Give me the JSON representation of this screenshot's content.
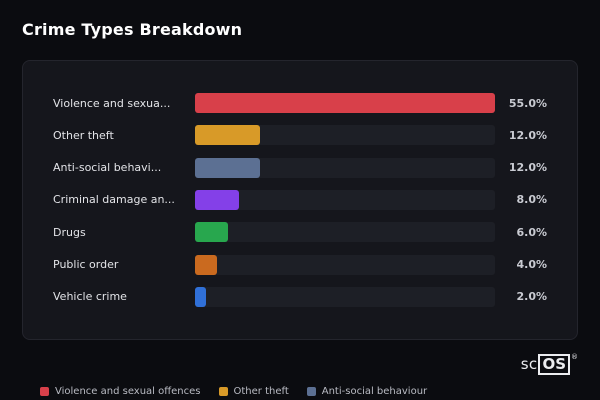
{
  "page": {
    "title": "Crime Types Breakdown"
  },
  "logo": {
    "prefix": "sc",
    "box": "OS",
    "registered": "®"
  },
  "chart_data": {
    "type": "bar",
    "orientation": "horizontal",
    "title": "Crime Types Breakdown",
    "xlim": [
      0,
      55
    ],
    "grid": false,
    "legend_position": "bottom",
    "categories": [
      "Violence and sexua...",
      "Other theft",
      "Anti-social behavi...",
      "Criminal damage an...",
      "Drugs",
      "Public order",
      "Vehicle crime"
    ],
    "values": [
      55.0,
      12.0,
      12.0,
      8.0,
      6.0,
      4.0,
      2.0
    ],
    "value_labels": [
      "55.0%",
      "12.0%",
      "12.0%",
      "8.0%",
      "6.0%",
      "4.0%",
      "2.0%"
    ],
    "bar_colors": [
      "#d8404a",
      "#d89a28",
      "#5c7093",
      "#8440e8",
      "#28a74e",
      "#ca6a1f",
      "#3070d8"
    ],
    "legend": [
      {
        "label": "Violence and sexual offences",
        "color": "#d8404a"
      },
      {
        "label": "Other theft",
        "color": "#d89a28"
      },
      {
        "label": "Anti-social behaviour",
        "color": "#5c7093"
      }
    ]
  }
}
